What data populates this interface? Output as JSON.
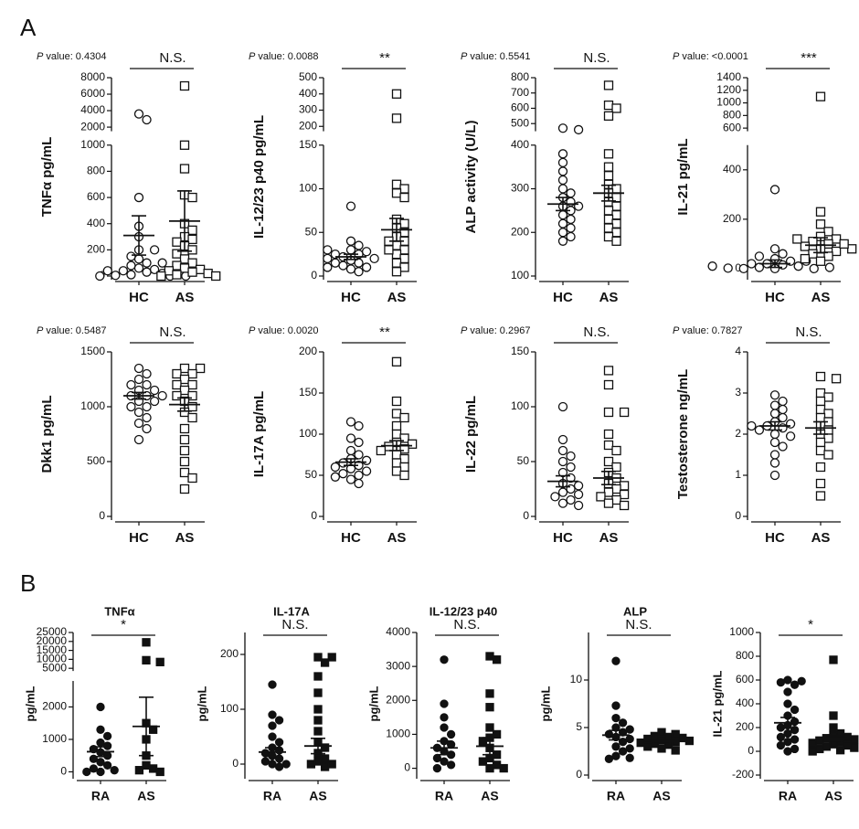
{
  "panel_labels": [
    "A",
    "B"
  ],
  "chart_data": [
    {
      "type": "dotplot",
      "ylabel": "TNFα pg/mL",
      "p_symbol": "P",
      "p_text": " value: 0.4304",
      "significance": "N.S.",
      "categories": [
        "HC",
        "AS"
      ],
      "markers": [
        "circle",
        "square"
      ],
      "filled": false,
      "values": [
        [
          3600,
          2900,
          600,
          380,
          300,
          200,
          200,
          130,
          100,
          80,
          60,
          50,
          40,
          30,
          20,
          10,
          5,
          0,
          0,
          0,
          40,
          60,
          100,
          150
        ],
        [
          7000,
          1000,
          820,
          620,
          600,
          400,
          350,
          300,
          280,
          260,
          230,
          200,
          170,
          130,
          100,
          80,
          60,
          50,
          40,
          30,
          20,
          10,
          0,
          0
        ]
      ],
      "mean": [
        310,
        420
      ],
      "sem": [
        150,
        230
      ],
      "ylim": [
        0,
        1000
      ],
      "yticks": [
        0,
        200,
        400,
        600,
        800,
        1000
      ],
      "upper_ylim": [
        1500,
        8000
      ],
      "upper_yticks": [
        2000,
        4000,
        6000,
        8000
      ]
    },
    {
      "type": "dotplot",
      "ylabel": "IL-12/23 p40 pg/mL",
      "p_symbol": "P",
      "p_text": " value: 0.0088",
      "significance": "**",
      "categories": [
        "HC",
        "AS"
      ],
      "markers": [
        "circle",
        "square"
      ],
      "filled": false,
      "values": [
        [
          80,
          40,
          35,
          30,
          28,
          25,
          22,
          20,
          18,
          15,
          12,
          10,
          8,
          5,
          25,
          30,
          20,
          15,
          10
        ],
        [
          400,
          250,
          105,
          100,
          95,
          90,
          65,
          60,
          55,
          50,
          45,
          40,
          35,
          30,
          25,
          20,
          15,
          10,
          5,
          40,
          30
        ]
      ],
      "mean": [
        22,
        53
      ],
      "sem": [
        3,
        13
      ],
      "ylim": [
        0,
        150
      ],
      "yticks": [
        0,
        50,
        100,
        150
      ],
      "upper_ylim": [
        170,
        500
      ],
      "upper_yticks": [
        200,
        300,
        400,
        500
      ]
    },
    {
      "type": "dotplot",
      "ylabel": "ALP activity (U/L)",
      "p_symbol": "P",
      "p_text": " value: 0.5541",
      "significance": "N.S.",
      "categories": [
        "HC",
        "AS"
      ],
      "markers": [
        "circle",
        "square"
      ],
      "filled": false,
      "values": [
        [
          470,
          460,
          380,
          360,
          340,
          320,
          300,
          290,
          280,
          270,
          260,
          260,
          250,
          240,
          230,
          220,
          210,
          200,
          190,
          180
        ],
        [
          750,
          620,
          600,
          550,
          380,
          350,
          330,
          310,
          300,
          290,
          280,
          270,
          260,
          250,
          240,
          230,
          220,
          210,
          200,
          190,
          180
        ]
      ],
      "mean": [
        265,
        290
      ],
      "sem": [
        15,
        18
      ],
      "ylim": [
        100,
        400
      ],
      "yticks": [
        100,
        200,
        300,
        400
      ],
      "upper_ylim": [
        450,
        800
      ],
      "upper_yticks": [
        500,
        600,
        700,
        800
      ]
    },
    {
      "type": "dotplot",
      "ylabel": "IL-21 pg/mL",
      "p_symbol": "P",
      "p_text": " value: <0.0001",
      "significance": "***",
      "categories": [
        "HC",
        "AS"
      ],
      "markers": [
        "circle",
        "square"
      ],
      "filled": false,
      "values": [
        [
          320,
          80,
          60,
          40,
          30,
          20,
          15,
          10,
          5,
          0,
          0,
          0,
          2,
          5,
          10,
          20,
          30,
          50
        ],
        [
          1100,
          230,
          180,
          150,
          130,
          120,
          110,
          100,
          90,
          80,
          70,
          60,
          50,
          40,
          30,
          80,
          100,
          120
        ]
      ],
      "mean": [
        20,
        95
      ],
      "sem": [
        15,
        30
      ],
      "ylim": [
        -30,
        500
      ],
      "yticks": [
        0,
        200,
        400
      ],
      "upper_ylim": [
        550,
        1400
      ],
      "upper_yticks": [
        600,
        800,
        1000,
        1200,
        1400
      ]
    },
    {
      "type": "dotplot",
      "ylabel": "Dkk1 pg/mL",
      "p_symbol": "P",
      "p_text": " value: 0.5487",
      "significance": "N.S.",
      "categories": [
        "HC",
        "AS"
      ],
      "markers": [
        "circle",
        "square"
      ],
      "filled": false,
      "values": [
        [
          1350,
          1300,
          1250,
          1200,
          1200,
          1150,
          1150,
          1100,
          1100,
          1100,
          1050,
          1050,
          1000,
          1000,
          950,
          900,
          850,
          800,
          700
        ],
        [
          1350,
          1350,
          1300,
          1300,
          1250,
          1200,
          1200,
          1150,
          1100,
          1100,
          1050,
          1000,
          950,
          900,
          800,
          700,
          600,
          500,
          400,
          350,
          250
        ]
      ],
      "mean": [
        1100,
        1020
      ],
      "sem": [
        30,
        60
      ],
      "ylim": [
        0,
        1500
      ],
      "yticks": [
        0,
        500,
        1000,
        1500
      ]
    },
    {
      "type": "dotplot",
      "ylabel": "IL-17A pg/mL",
      "p_symbol": "P",
      "p_text": " value: 0.0020",
      "significance": "**",
      "categories": [
        "HC",
        "AS"
      ],
      "markers": [
        "circle",
        "square"
      ],
      "filled": false,
      "values": [
        [
          115,
          110,
          95,
          90,
          80,
          75,
          70,
          68,
          65,
          62,
          60,
          58,
          55,
          52,
          50,
          48,
          45,
          40
        ],
        [
          188,
          140,
          125,
          120,
          110,
          100,
          95,
          90,
          88,
          85,
          82,
          80,
          75,
          70,
          65,
          60,
          55,
          50
        ]
      ],
      "mean": [
        66,
        86
      ],
      "sem": [
        4,
        6
      ],
      "ylim": [
        0,
        200
      ],
      "yticks": [
        0,
        50,
        100,
        150,
        200
      ]
    },
    {
      "type": "dotplot",
      "ylabel": "IL-22 pg/mL",
      "p_symbol": "P",
      "p_text": " value: 0.2967",
      "significance": "N.S.",
      "categories": [
        "HC",
        "AS"
      ],
      "markers": [
        "circle",
        "square"
      ],
      "filled": false,
      "values": [
        [
          100,
          70,
          60,
          55,
          50,
          45,
          40,
          35,
          30,
          28,
          25,
          22,
          20,
          18,
          15,
          12,
          10
        ],
        [
          133,
          120,
          95,
          95,
          75,
          65,
          60,
          50,
          45,
          40,
          35,
          30,
          28,
          25,
          22,
          20,
          18,
          15,
          12,
          10
        ]
      ],
      "mean": [
        32,
        35
      ],
      "sem": [
        5,
        6
      ],
      "ylim": [
        0,
        150
      ],
      "yticks": [
        0,
        50,
        100,
        150
      ]
    },
    {
      "type": "dotplot",
      "ylabel": "Testosterone ng/mL",
      "p_symbol": "P",
      "p_text": " value: 0.7827",
      "significance": "N.S.",
      "categories": [
        "HC",
        "AS"
      ],
      "markers": [
        "circle",
        "square"
      ],
      "filled": false,
      "values": [
        [
          2.95,
          2.8,
          2.7,
          2.6,
          2.5,
          2.4,
          2.3,
          2.25,
          2.2,
          2.2,
          2.15,
          2.1,
          2.0,
          1.95,
          1.8,
          1.7,
          1.5,
          1.3,
          1.0
        ],
        [
          3.4,
          3.35,
          3.0,
          2.9,
          2.8,
          2.6,
          2.5,
          2.4,
          2.3,
          2.2,
          2.1,
          2.0,
          1.9,
          1.8,
          1.6,
          1.5,
          1.2,
          0.8,
          0.5
        ]
      ],
      "mean": [
        2.2,
        2.15
      ],
      "sem": [
        0.1,
        0.15
      ],
      "ylim": [
        0,
        4
      ],
      "yticks": [
        0,
        1,
        2,
        3,
        4
      ]
    },
    {
      "type": "dotplot",
      "title": "TNFα",
      "ylabel": "pg/mL",
      "significance": "*",
      "categories": [
        "RA",
        "AS"
      ],
      "markers": [
        "circle",
        "square"
      ],
      "filled": true,
      "values": [
        [
          2000,
          1300,
          1100,
          900,
          800,
          700,
          600,
          500,
          400,
          300,
          200,
          100,
          50,
          0,
          0
        ],
        [
          19500,
          9500,
          8500,
          1500,
          1300,
          1000,
          500,
          200,
          100,
          50,
          0
        ]
      ],
      "mean": [
        620,
        1400
      ],
      "sem": [
        150,
        900
      ],
      "ylim": [
        -100,
        2800
      ],
      "yticks": [
        0,
        1000,
        2000
      ],
      "upper_ylim": [
        3500,
        25000
      ],
      "upper_yticks": [
        5000,
        10000,
        15000,
        20000,
        25000
      ]
    },
    {
      "type": "dotplot",
      "title": "IL-17A",
      "ylabel": "pg/mL",
      "significance": "N.S.",
      "categories": [
        "RA",
        "AS"
      ],
      "markers": [
        "circle",
        "square"
      ],
      "filled": true,
      "values": [
        [
          145,
          90,
          80,
          70,
          50,
          40,
          30,
          25,
          20,
          15,
          10,
          5,
          0,
          -5,
          0
        ],
        [
          195,
          195,
          185,
          160,
          130,
          100,
          80,
          60,
          40,
          30,
          20,
          10,
          5,
          0,
          0,
          -5
        ]
      ],
      "mean": [
        22,
        33
      ],
      "sem": [
        8,
        14
      ],
      "ylim": [
        -20,
        240
      ],
      "yticks": [
        0,
        100,
        200
      ]
    },
    {
      "type": "dotplot",
      "title": "IL-12/23 p40",
      "ylabel": "pg/mL",
      "significance": "N.S.",
      "categories": [
        "RA",
        "AS"
      ],
      "markers": [
        "circle",
        "square"
      ],
      "filled": true,
      "values": [
        [
          3200,
          1900,
          1500,
          1200,
          1000,
          800,
          700,
          600,
          500,
          400,
          300,
          200,
          100,
          0
        ],
        [
          3300,
          3200,
          2200,
          1800,
          1200,
          1000,
          900,
          800,
          600,
          400,
          300,
          200,
          100,
          0,
          0
        ]
      ],
      "mean": [
        600,
        650
      ],
      "sem": [
        200,
        250
      ],
      "ylim": [
        -200,
        4000
      ],
      "yticks": [
        0,
        1000,
        2000,
        3000,
        4000
      ]
    },
    {
      "type": "dotplot",
      "title": "ALP",
      "ylabel": "pg/mL",
      "significance": "N.S.",
      "categories": [
        "RA",
        "AS"
      ],
      "markers": [
        "circle",
        "square"
      ],
      "filled": true,
      "values": [
        [
          12,
          7.3,
          6,
          5.5,
          5,
          4.8,
          4.5,
          4.3,
          4,
          3.8,
          3.5,
          3,
          2.8,
          2.5,
          2,
          1.8,
          1.7
        ],
        [
          4.5,
          4.3,
          4.1,
          4,
          3.9,
          3.8,
          3.7,
          3.6,
          3.5,
          3.4,
          3.3,
          3.2,
          3,
          2.8,
          2.6
        ]
      ],
      "mean": [
        4.2,
        3.6
      ],
      "sem": [
        0.5,
        0.15
      ],
      "ylim": [
        0,
        15
      ],
      "yticks": [
        0,
        5,
        10
      ]
    },
    {
      "type": "dotplot",
      "ylabel": "IL-21 pg/mL",
      "significance": "*",
      "categories": [
        "RA",
        "AS"
      ],
      "markers": [
        "circle",
        "square"
      ],
      "filled": true,
      "values": [
        [
          600,
          590,
          580,
          560,
          500,
          400,
          350,
          300,
          250,
          220,
          200,
          180,
          150,
          120,
          100,
          80,
          50,
          20,
          0
        ],
        [
          770,
          300,
          200,
          150,
          130,
          120,
          110,
          100,
          90,
          80,
          70,
          60,
          50,
          40,
          30,
          20,
          10,
          0
        ]
      ],
      "mean": [
        240,
        110
      ],
      "sem": [
        45,
        20
      ],
      "ylim": [
        -200,
        1000
      ],
      "yticks": [
        -200,
        0,
        200,
        400,
        600,
        800,
        1000
      ]
    }
  ]
}
